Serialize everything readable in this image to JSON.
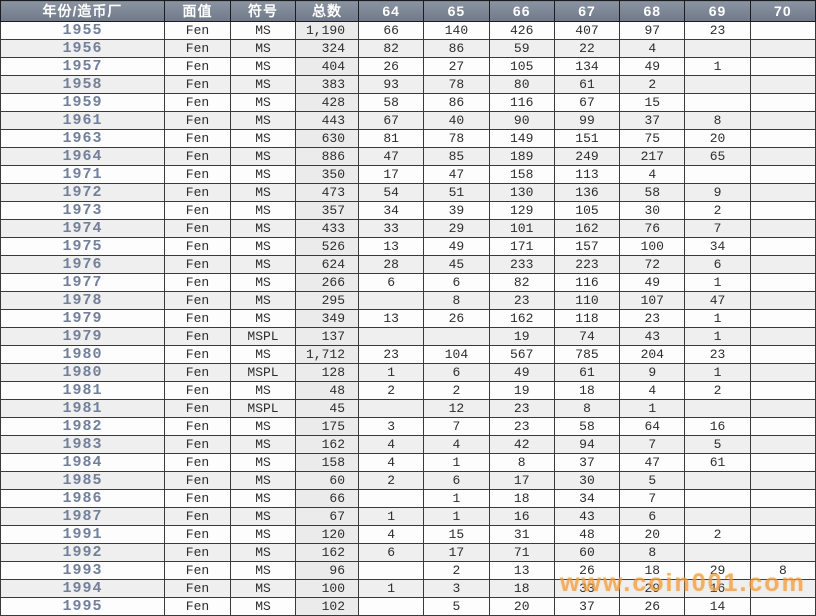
{
  "colors": {
    "header_bg": "#77818F",
    "header_text": "#FFFFFF",
    "year_color": "#72809B",
    "row_alt": "#EFEFEF",
    "total_bg": "#EBEBEB",
    "border_color": "#3A3A3A",
    "watermark_color": "#F49C3C"
  },
  "table": {
    "columns": [
      "年份/造币厂",
      "面值",
      "符号",
      "总数",
      "64",
      "65",
      "66",
      "67",
      "68",
      "69",
      "70"
    ],
    "rows": [
      [
        "1955",
        "Fen",
        "MS",
        "1,190",
        "66",
        "140",
        "426",
        "407",
        "97",
        "23",
        ""
      ],
      [
        "1956",
        "Fen",
        "MS",
        "324",
        "82",
        "86",
        "59",
        "22",
        "4",
        "",
        ""
      ],
      [
        "1957",
        "Fen",
        "MS",
        "404",
        "26",
        "27",
        "105",
        "134",
        "49",
        "1",
        ""
      ],
      [
        "1958",
        "Fen",
        "MS",
        "383",
        "93",
        "78",
        "80",
        "61",
        "2",
        "",
        ""
      ],
      [
        "1959",
        "Fen",
        "MS",
        "428",
        "58",
        "86",
        "116",
        "67",
        "15",
        "",
        ""
      ],
      [
        "1961",
        "Fen",
        "MS",
        "443",
        "67",
        "40",
        "90",
        "99",
        "37",
        "8",
        ""
      ],
      [
        "1963",
        "Fen",
        "MS",
        "630",
        "81",
        "78",
        "149",
        "151",
        "75",
        "20",
        ""
      ],
      [
        "1964",
        "Fen",
        "MS",
        "886",
        "47",
        "85",
        "189",
        "249",
        "217",
        "65",
        ""
      ],
      [
        "1971",
        "Fen",
        "MS",
        "350",
        "17",
        "47",
        "158",
        "113",
        "4",
        "",
        ""
      ],
      [
        "1972",
        "Fen",
        "MS",
        "473",
        "54",
        "51",
        "130",
        "136",
        "58",
        "9",
        ""
      ],
      [
        "1973",
        "Fen",
        "MS",
        "357",
        "34",
        "39",
        "129",
        "105",
        "30",
        "2",
        ""
      ],
      [
        "1974",
        "Fen",
        "MS",
        "433",
        "33",
        "29",
        "101",
        "162",
        "76",
        "7",
        ""
      ],
      [
        "1975",
        "Fen",
        "MS",
        "526",
        "13",
        "49",
        "171",
        "157",
        "100",
        "34",
        ""
      ],
      [
        "1976",
        "Fen",
        "MS",
        "624",
        "28",
        "45",
        "233",
        "223",
        "72",
        "6",
        ""
      ],
      [
        "1977",
        "Fen",
        "MS",
        "266",
        "6",
        "6",
        "82",
        "116",
        "49",
        "1",
        ""
      ],
      [
        "1978",
        "Fen",
        "MS",
        "295",
        "",
        "8",
        "23",
        "110",
        "107",
        "47",
        ""
      ],
      [
        "1979",
        "Fen",
        "MS",
        "349",
        "13",
        "26",
        "162",
        "118",
        "23",
        "1",
        ""
      ],
      [
        "1979",
        "Fen",
        "MSPL",
        "137",
        "",
        "",
        "19",
        "74",
        "43",
        "1",
        ""
      ],
      [
        "1980",
        "Fen",
        "MS",
        "1,712",
        "23",
        "104",
        "567",
        "785",
        "204",
        "23",
        ""
      ],
      [
        "1980",
        "Fen",
        "MSPL",
        "128",
        "1",
        "6",
        "49",
        "61",
        "9",
        "1",
        ""
      ],
      [
        "1981",
        "Fen",
        "MS",
        "48",
        "2",
        "2",
        "19",
        "18",
        "4",
        "2",
        ""
      ],
      [
        "1981",
        "Fen",
        "MSPL",
        "45",
        "",
        "12",
        "23",
        "8",
        "1",
        "",
        ""
      ],
      [
        "1982",
        "Fen",
        "MS",
        "175",
        "3",
        "7",
        "23",
        "58",
        "64",
        "16",
        ""
      ],
      [
        "1983",
        "Fen",
        "MS",
        "162",
        "4",
        "4",
        "42",
        "94",
        "7",
        "5",
        ""
      ],
      [
        "1984",
        "Fen",
        "MS",
        "158",
        "4",
        "1",
        "8",
        "37",
        "47",
        "61",
        ""
      ],
      [
        "1985",
        "Fen",
        "MS",
        "60",
        "2",
        "6",
        "17",
        "30",
        "5",
        "",
        ""
      ],
      [
        "1986",
        "Fen",
        "MS",
        "66",
        "",
        "1",
        "18",
        "34",
        "7",
        "",
        ""
      ],
      [
        "1987",
        "Fen",
        "MS",
        "67",
        "1",
        "1",
        "16",
        "43",
        "6",
        "",
        ""
      ],
      [
        "1991",
        "Fen",
        "MS",
        "120",
        "4",
        "15",
        "31",
        "48",
        "20",
        "2",
        ""
      ],
      [
        "1992",
        "Fen",
        "MS",
        "162",
        "6",
        "17",
        "71",
        "60",
        "8",
        "",
        ""
      ],
      [
        "1993",
        "Fen",
        "MS",
        "96",
        "",
        "2",
        "13",
        "26",
        "18",
        "29",
        "8"
      ],
      [
        "1994",
        "Fen",
        "MS",
        "100",
        "1",
        "3",
        "18",
        "33",
        "29",
        "16",
        ""
      ],
      [
        "1995",
        "Fen",
        "MS",
        "102",
        "",
        "5",
        "20",
        "37",
        "26",
        "14",
        ""
      ]
    ]
  },
  "watermark": {
    "text": "www.coin001.com"
  }
}
